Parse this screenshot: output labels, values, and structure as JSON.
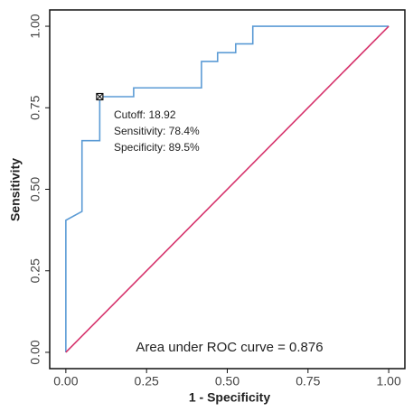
{
  "chart_data": {
    "type": "line",
    "x_label": "1 - Specificity",
    "y_label": "Sensitivity",
    "xlim": [
      -0.05,
      1.05
    ],
    "ylim": [
      -0.05,
      1.05
    ],
    "xticks": [
      {
        "value": 0,
        "label": "0.00"
      },
      0.25,
      {
        "value": 0.5,
        "label": "0.50"
      },
      0.75,
      {
        "value": 1,
        "label": "1.00"
      }
    ],
    "yticks": [
      {
        "value": 0,
        "label": "0.00"
      },
      0.25,
      {
        "value": 0.5,
        "label": "0.50"
      },
      0.75,
      {
        "value": 1,
        "label": "1.00"
      }
    ],
    "series": [
      {
        "color": "#5b9bd5",
        "x": [
          0,
          0,
          0.05,
          0.05,
          0.105,
          0.105,
          0.21,
          0.21,
          0.42,
          0.42,
          0.47,
          0.47,
          0.526,
          0.526,
          0.579,
          0.579,
          1
        ],
        "values": [
          0,
          0.405,
          0.432,
          0.649,
          0.649,
          0.784,
          0.784,
          0.811,
          0.811,
          0.892,
          0.892,
          0.919,
          0.919,
          0.946,
          0.946,
          1,
          1
        ]
      },
      {
        "color": "#d6336c",
        "x": [
          0,
          1
        ],
        "values": [
          0,
          1
        ]
      }
    ],
    "cutoff_point": {
      "x": 0.105,
      "y": 0.784
    },
    "annotations": [
      "Cutoff: 18.92",
      "Sensitivity: 78.4%",
      "Specificity: 89.5%"
    ],
    "auc_label": "Area under ROC curve =  0.876"
  }
}
